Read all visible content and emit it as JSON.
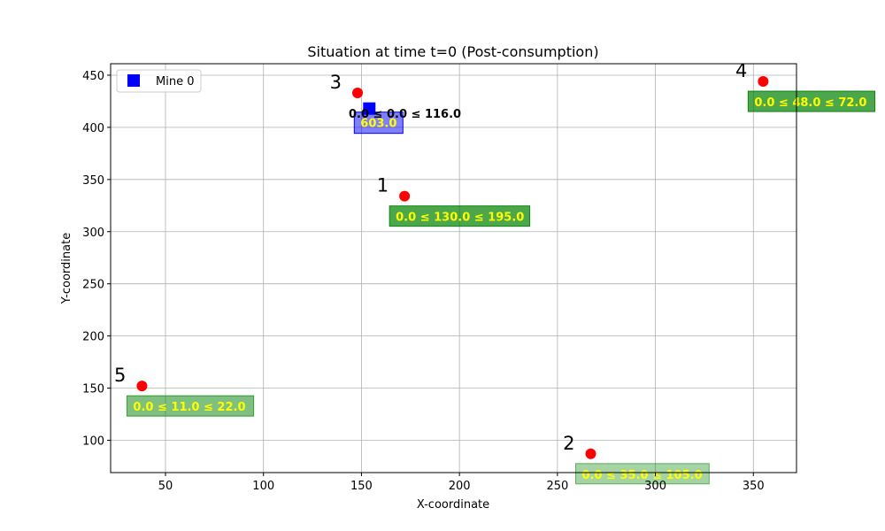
{
  "chart_data": {
    "type": "scatter",
    "title": "Situation at time t=0 (Post-consumption)",
    "xlabel": "X-coordinate",
    "ylabel": "Y-coordinate",
    "xlim": [
      22,
      372
    ],
    "ylim": [
      69,
      461
    ],
    "xticks": [
      50,
      100,
      150,
      200,
      250,
      300,
      350
    ],
    "yticks": [
      100,
      150,
      200,
      250,
      300,
      350,
      400,
      450
    ],
    "grid": true,
    "legend": {
      "position": "top-left",
      "entries": [
        {
          "label": "Mine 0",
          "color": "#0000ff",
          "marker": "square"
        }
      ]
    },
    "points": [
      {
        "id": "1",
        "x": 172,
        "y": 334,
        "box_text": "0.0 ≤ 130.0 ≤ 195.0",
        "box_opacity": 0.7
      },
      {
        "id": "2",
        "x": 267,
        "y": 87,
        "box_text": "0.0 ≤ 35.0 ≤ 105.0",
        "box_opacity": 0.35
      },
      {
        "id": "3",
        "x": 148,
        "y": 433,
        "box_text": "0.0 ≤ 0.0 ≤ 116.0",
        "box_opacity": 0.0
      },
      {
        "id": "4",
        "x": 355,
        "y": 444,
        "box_text": "0.0 ≤ 48.0 ≤ 72.0",
        "box_opacity": 0.7
      },
      {
        "id": "5",
        "x": 38,
        "y": 152,
        "box_text": "0.0 ≤ 11.0 ≤ 22.0",
        "box_opacity": 0.5
      }
    ],
    "mines": [
      {
        "name": "Mine 0",
        "x": 154,
        "y": 418,
        "box_text": "603.0"
      }
    ]
  },
  "colors": {
    "point": "#ff0000",
    "mine": "#0000ff",
    "box_green": "#008000",
    "box_blue": "#0000ff",
    "box_text_yellow": "#ffff00",
    "grid": "#b0b0b0"
  }
}
